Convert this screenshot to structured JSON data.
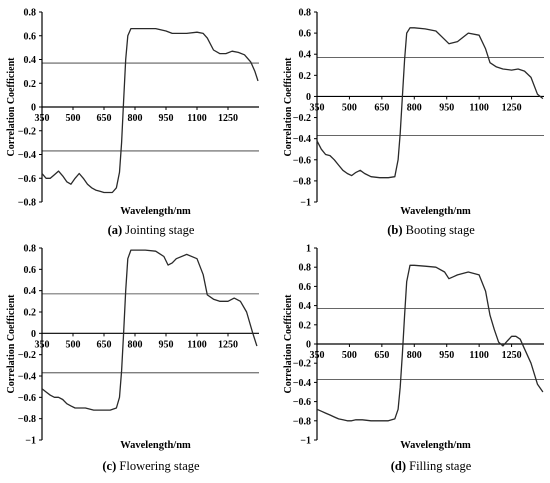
{
  "chart_data": [
    {
      "type": "line",
      "caption_letter": "(a)",
      "caption_text": " Jointing stage",
      "xlabel": "Wavelength/nm",
      "ylabel": "Correlation Coefficient",
      "xlim": [
        350,
        1400
      ],
      "ylim": [
        -0.8,
        0.8
      ],
      "xticks": [
        350,
        500,
        650,
        800,
        950,
        1100,
        1250
      ],
      "yticks": [
        -0.8,
        -0.6,
        -0.4,
        -0.2,
        0,
        0.2,
        0.4,
        0.6,
        0.8
      ],
      "ytick_labels": [
        "−0.8",
        "−0.6",
        "−0.4",
        "−0.2",
        "0",
        "0.2",
        "0.4",
        "0.6",
        "0.8"
      ],
      "threshold": 0.37,
      "x": [
        350,
        370,
        390,
        410,
        430,
        450,
        470,
        490,
        510,
        530,
        550,
        570,
        590,
        610,
        630,
        650,
        670,
        690,
        710,
        725,
        735,
        745,
        755,
        765,
        780,
        800,
        850,
        900,
        950,
        980,
        1000,
        1050,
        1100,
        1130,
        1150,
        1180,
        1210,
        1240,
        1270,
        1300,
        1330,
        1360,
        1380,
        1395
      ],
      "y": [
        -0.56,
        -0.6,
        -0.6,
        -0.57,
        -0.54,
        -0.58,
        -0.63,
        -0.65,
        -0.6,
        -0.56,
        -0.6,
        -0.65,
        -0.68,
        -0.7,
        -0.71,
        -0.72,
        -0.72,
        -0.72,
        -0.68,
        -0.55,
        -0.3,
        0.05,
        0.4,
        0.6,
        0.66,
        0.66,
        0.66,
        0.66,
        0.64,
        0.62,
        0.62,
        0.62,
        0.63,
        0.62,
        0.58,
        0.48,
        0.45,
        0.45,
        0.47,
        0.46,
        0.44,
        0.38,
        0.3,
        0.22
      ]
    },
    {
      "type": "line",
      "caption_letter": "(b)",
      "caption_text": " Booting stage",
      "xlabel": "Wavelength/nm",
      "ylabel": "Correlation Coefficient",
      "xlim": [
        350,
        1400
      ],
      "ylim": [
        -1,
        0.8
      ],
      "xticks": [
        350,
        500,
        650,
        800,
        950,
        1100,
        1250
      ],
      "yticks": [
        -1,
        -0.8,
        -0.6,
        -0.4,
        -0.2,
        0,
        0.2,
        0.4,
        0.6,
        0.8
      ],
      "ytick_labels": [
        "−1",
        "−0.8",
        "−0.6",
        "−0.4",
        "−0.2",
        "0",
        "0.2",
        "0.4",
        "0.6",
        "0.8"
      ],
      "threshold": 0.37,
      "x": [
        350,
        370,
        390,
        410,
        430,
        450,
        470,
        490,
        510,
        530,
        550,
        570,
        600,
        640,
        680,
        710,
        725,
        735,
        745,
        755,
        765,
        780,
        800,
        850,
        900,
        930,
        960,
        1000,
        1050,
        1100,
        1130,
        1150,
        1180,
        1210,
        1250,
        1280,
        1310,
        1340,
        1370,
        1395
      ],
      "y": [
        -0.42,
        -0.5,
        -0.55,
        -0.56,
        -0.6,
        -0.65,
        -0.7,
        -0.73,
        -0.75,
        -0.72,
        -0.7,
        -0.73,
        -0.76,
        -0.77,
        -0.77,
        -0.76,
        -0.6,
        -0.35,
        0.0,
        0.35,
        0.6,
        0.65,
        0.65,
        0.64,
        0.62,
        0.56,
        0.5,
        0.52,
        0.6,
        0.58,
        0.45,
        0.32,
        0.28,
        0.26,
        0.25,
        0.26,
        0.24,
        0.18,
        0.02,
        -0.02
      ]
    },
    {
      "type": "line",
      "caption_letter": "(c)",
      "caption_text": " Flowering stage",
      "xlabel": "Wavelength/nm",
      "ylabel": "Correlation Coefficient",
      "xlim": [
        350,
        1400
      ],
      "ylim": [
        -1,
        0.8
      ],
      "xticks": [
        350,
        500,
        650,
        800,
        950,
        1100,
        1250
      ],
      "yticks": [
        -1,
        -0.8,
        -0.6,
        -0.4,
        -0.2,
        0,
        0.2,
        0.4,
        0.6,
        0.8
      ],
      "ytick_labels": [
        "−1",
        "−0.8",
        "−0.6",
        "−0.4",
        "−0.2",
        "0",
        "0.2",
        "0.4",
        "0.6",
        "0.8"
      ],
      "threshold": 0.37,
      "x": [
        350,
        370,
        390,
        410,
        430,
        450,
        470,
        490,
        510,
        530,
        560,
        600,
        640,
        680,
        710,
        725,
        735,
        745,
        755,
        765,
        780,
        800,
        850,
        900,
        940,
        960,
        980,
        1000,
        1050,
        1100,
        1130,
        1150,
        1180,
        1210,
        1250,
        1280,
        1310,
        1340,
        1370,
        1390
      ],
      "y": [
        -0.52,
        -0.55,
        -0.58,
        -0.6,
        -0.6,
        -0.62,
        -0.66,
        -0.68,
        -0.7,
        -0.7,
        -0.7,
        -0.72,
        -0.72,
        -0.72,
        -0.7,
        -0.6,
        -0.35,
        0.0,
        0.4,
        0.7,
        0.78,
        0.78,
        0.78,
        0.77,
        0.72,
        0.64,
        0.66,
        0.7,
        0.74,
        0.7,
        0.55,
        0.36,
        0.32,
        0.3,
        0.3,
        0.33,
        0.3,
        0.2,
        0.0,
        -0.12
      ]
    },
    {
      "type": "line",
      "caption_letter": "(d)",
      "caption_text": " Filling stage",
      "xlabel": "Wavelength/nm",
      "ylabel": "Correlation Coefficient",
      "xlim": [
        350,
        1400
      ],
      "ylim": [
        -1,
        1
      ],
      "xticks": [
        350,
        500,
        650,
        800,
        950,
        1100,
        1250
      ],
      "yticks": [
        -1,
        -0.8,
        -0.6,
        -0.4,
        -0.2,
        0,
        0.2,
        0.4,
        0.6,
        0.8,
        1
      ],
      "ytick_labels": [
        "−1",
        "−0.8",
        "−0.6",
        "−0.4",
        "−0.2",
        "0",
        "0.2",
        "0.4",
        "0.6",
        "0.8",
        "1"
      ],
      "threshold": 0.37,
      "x": [
        350,
        370,
        390,
        410,
        430,
        450,
        470,
        490,
        510,
        530,
        560,
        600,
        640,
        680,
        710,
        725,
        735,
        745,
        755,
        765,
        780,
        800,
        850,
        900,
        940,
        960,
        980,
        1000,
        1050,
        1100,
        1130,
        1150,
        1170,
        1190,
        1210,
        1230,
        1250,
        1270,
        1290,
        1310,
        1340,
        1370,
        1395
      ],
      "y": [
        -0.68,
        -0.7,
        -0.72,
        -0.74,
        -0.76,
        -0.78,
        -0.79,
        -0.8,
        -0.8,
        -0.79,
        -0.79,
        -0.8,
        -0.8,
        -0.8,
        -0.78,
        -0.68,
        -0.45,
        -0.1,
        0.3,
        0.65,
        0.82,
        0.82,
        0.81,
        0.8,
        0.75,
        0.68,
        0.7,
        0.72,
        0.75,
        0.72,
        0.55,
        0.3,
        0.15,
        0.02,
        -0.02,
        0.03,
        0.08,
        0.08,
        0.05,
        -0.05,
        -0.2,
        -0.42,
        -0.5
      ]
    }
  ]
}
